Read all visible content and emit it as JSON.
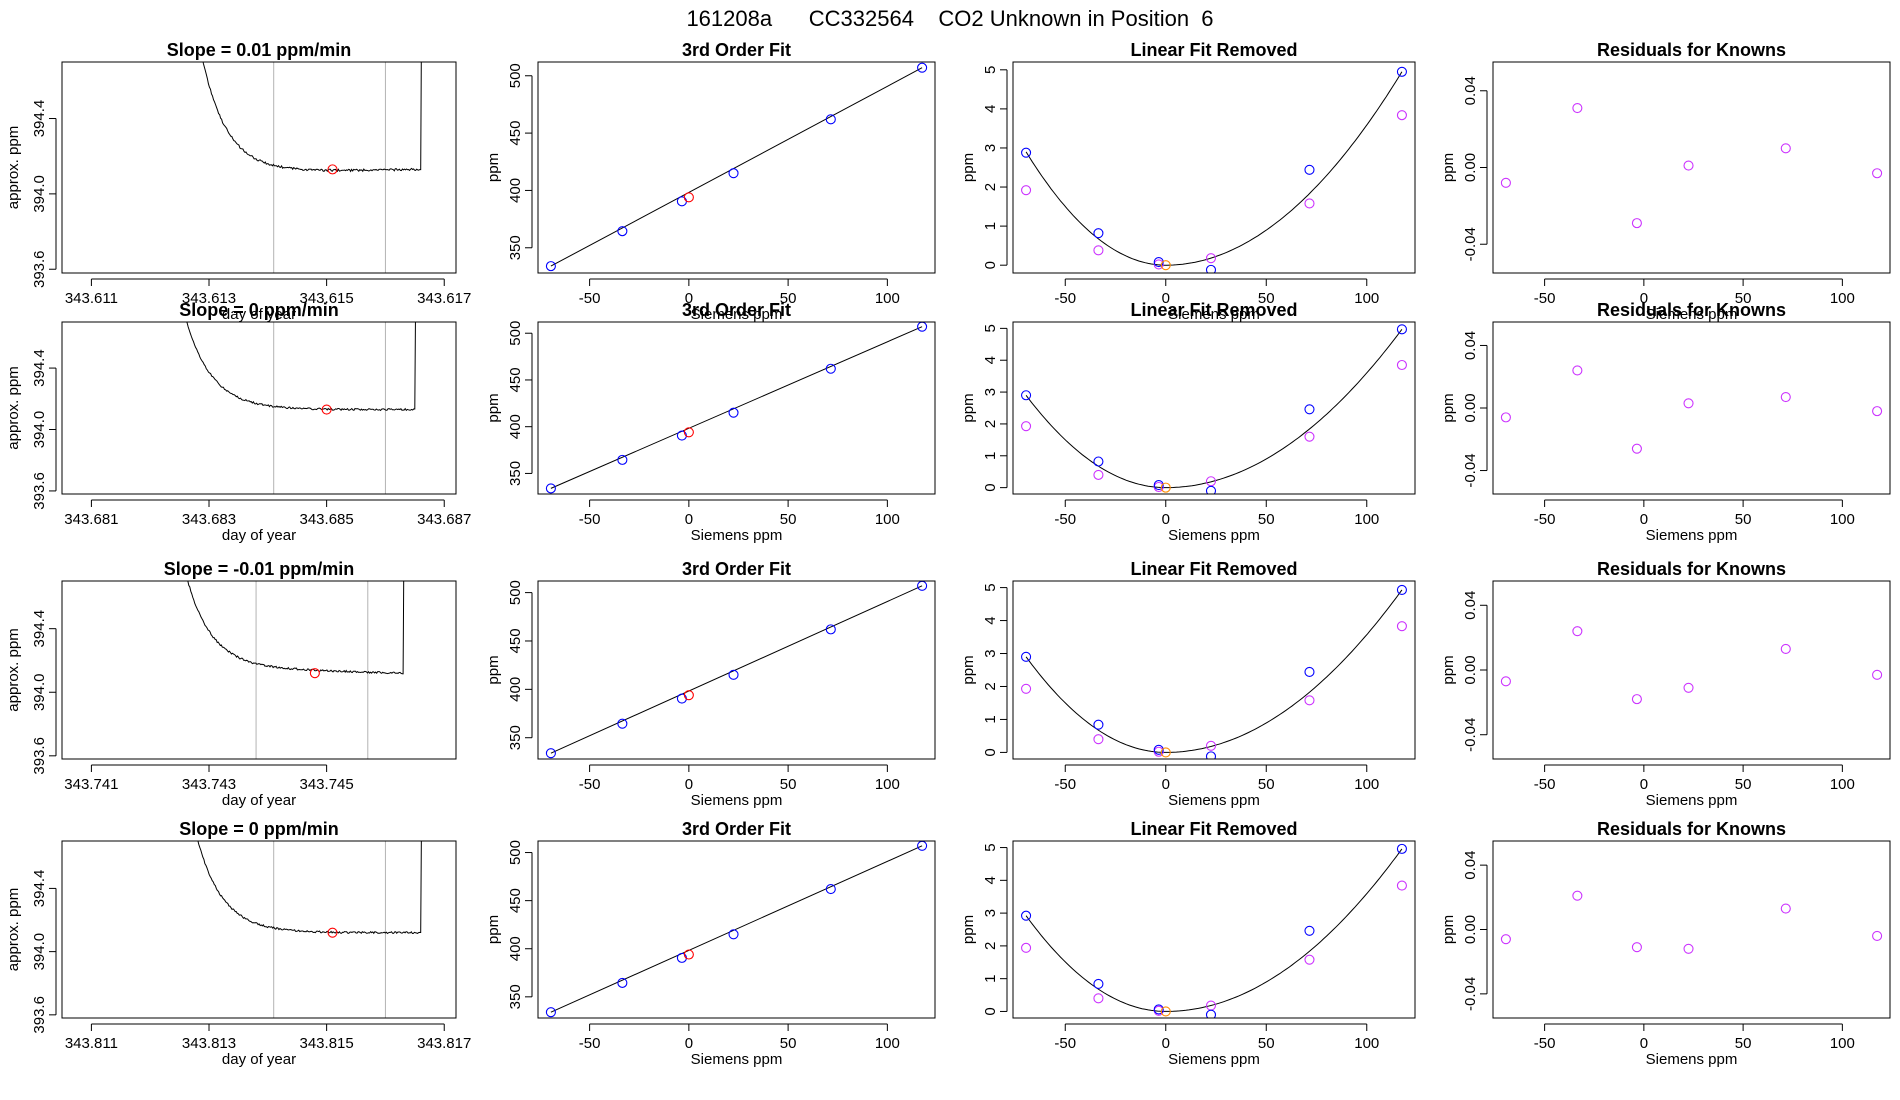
{
  "page": {
    "title": "161208a      CC332564    CO2 Unknown in Position  6"
  },
  "colors": {
    "known_points": "#0000ff",
    "unknown_point": "#ff0000",
    "residual_points": "#cc33ff",
    "unknown_linear_removed": "#ff8c00",
    "trace": "#000000",
    "window_lines": "#b3b3b3",
    "frame": "#000000"
  },
  "chart_data": [
    {
      "type": "line",
      "row": 0,
      "panel": "trace",
      "title": "Slope =  0.01  ppm/min",
      "xlabel": "day of year",
      "ylabel": "approx. ppm",
      "xlim": [
        343.6105,
        343.6172
      ],
      "ylim": [
        393.58,
        394.7
      ],
      "xticks": [
        343.611,
        343.613,
        343.615,
        343.617
      ],
      "xtick_labels": [
        "343.611",
        "343.613",
        "343.615",
        "343.617"
      ],
      "yticks": [
        393.6,
        394.0,
        394.4
      ],
      "ytick_labels": [
        "393.6",
        "394.0",
        "394.4"
      ],
      "window": [
        343.6141,
        343.616
      ],
      "trace_start": 343.6128,
      "trace_end": 343.6166,
      "plateau": 394.12,
      "slope_shift": 0.02,
      "highlight": {
        "x": 343.6151,
        "y": 394.13
      }
    },
    {
      "type": "scatter",
      "row": 0,
      "panel": "fit",
      "title": "3rd Order Fit",
      "xlabel": "Siemens ppm",
      "ylabel": "ppm",
      "xlim": [
        -76,
        124
      ],
      "ylim": [
        328,
        512
      ],
      "xticks": [
        -50,
        0,
        50,
        100
      ],
      "xtick_labels": [
        "-50",
        "0",
        "50",
        "100"
      ],
      "yticks": [
        350,
        400,
        450,
        500
      ],
      "ytick_labels": [
        "350",
        "400",
        "450",
        "500"
      ],
      "known_x": [
        -69.5,
        -33.5,
        -3.5,
        22.5,
        71.5,
        117.5
      ],
      "known_y": [
        334.0,
        364.5,
        390.5,
        415.0,
        462.0,
        507.0
      ],
      "unknown": {
        "x": 0.0,
        "y": 394.0
      },
      "fit_line": [
        [
          -69.5,
          334.0
        ],
        [
          117.5,
          507.0
        ]
      ]
    },
    {
      "type": "scatter",
      "row": 0,
      "panel": "linear_removed",
      "title": "Linear Fit Removed",
      "xlabel": "Siemens ppm",
      "ylabel": "ppm",
      "xlim": [
        -76,
        124
      ],
      "ylim": [
        -0.2,
        5.2
      ],
      "xticks": [
        -50,
        0,
        50,
        100
      ],
      "xtick_labels": [
        "-50",
        "0",
        "50",
        "100"
      ],
      "yticks": [
        0,
        1,
        2,
        3,
        4,
        5
      ],
      "ytick_labels": [
        "0",
        "1",
        "2",
        "3",
        "4",
        "5"
      ],
      "known_x": [
        -69.5,
        -33.5,
        -3.5,
        22.5,
        71.5,
        117.5
      ],
      "known_y": [
        2.88,
        0.82,
        0.08,
        -0.12,
        2.44,
        4.95
      ],
      "alt_y": [
        1.92,
        0.38,
        0.02,
        0.18,
        1.58,
        3.84
      ],
      "unknown": {
        "x": 0.0,
        "y": 0.0
      },
      "curve_vertex": 0,
      "curve_left": 2.9,
      "curve_right": 4.95
    },
    {
      "type": "scatter",
      "row": 0,
      "panel": "residuals",
      "title": "Residuals for Knowns",
      "xlabel": "Siemens ppm",
      "ylabel": "ppm",
      "xlim": [
        -76,
        124
      ],
      "ylim": [
        -0.055,
        0.055
      ],
      "xticks": [
        -50,
        0,
        50,
        100
      ],
      "xtick_labels": [
        "-50",
        "0",
        "50",
        "100"
      ],
      "yticks": [
        -0.04,
        0.0,
        0.04
      ],
      "ytick_labels": [
        "-0.04",
        "0.00",
        "0.04"
      ],
      "x": [
        -69.5,
        -33.5,
        -3.5,
        22.5,
        71.5,
        117.5
      ],
      "y": [
        -0.008,
        0.031,
        -0.029,
        0.001,
        0.01,
        -0.003
      ]
    },
    {
      "type": "line",
      "row": 1,
      "panel": "trace",
      "title": "Slope =  0  ppm/min",
      "xlabel": "day of year",
      "ylabel": "approx. ppm",
      "xlim": [
        343.6805,
        343.6872
      ],
      "ylim": [
        393.58,
        394.7
      ],
      "xticks": [
        343.681,
        343.683,
        343.685,
        343.687
      ],
      "xtick_labels": [
        "343.681",
        "343.683",
        "343.685",
        "343.687"
      ],
      "yticks": [
        393.6,
        394.0,
        394.4
      ],
      "ytick_labels": [
        "393.6",
        "394.0",
        "394.4"
      ],
      "window": [
        343.6841,
        343.686
      ],
      "trace_start": 343.6825,
      "trace_end": 343.6865,
      "plateau": 394.13,
      "slope_shift": 0.0,
      "highlight": {
        "x": 343.685,
        "y": 394.13
      }
    },
    {
      "type": "scatter",
      "row": 1,
      "panel": "fit",
      "title": "3rd Order Fit",
      "xlabel": "Siemens ppm",
      "ylabel": "ppm",
      "xlim": [
        -76,
        124
      ],
      "ylim": [
        328,
        512
      ],
      "xticks": [
        -50,
        0,
        50,
        100
      ],
      "xtick_labels": [
        "-50",
        "0",
        "50",
        "100"
      ],
      "yticks": [
        350,
        400,
        450,
        500
      ],
      "ytick_labels": [
        "350",
        "400",
        "450",
        "500"
      ],
      "known_x": [
        -69.5,
        -33.5,
        -3.5,
        22.5,
        71.5,
        117.5
      ],
      "known_y": [
        334.0,
        364.5,
        390.5,
        415.0,
        462.0,
        507.0
      ],
      "unknown": {
        "x": 0.0,
        "y": 394.0
      },
      "fit_line": [
        [
          -69.5,
          334.0
        ],
        [
          117.5,
          507.0
        ]
      ]
    },
    {
      "type": "scatter",
      "row": 1,
      "panel": "linear_removed",
      "title": "Linear Fit Removed",
      "xlabel": "Siemens ppm",
      "ylabel": "ppm",
      "xlim": [
        -76,
        124
      ],
      "ylim": [
        -0.2,
        5.2
      ],
      "xticks": [
        -50,
        0,
        50,
        100
      ],
      "xtick_labels": [
        "-50",
        "0",
        "50",
        "100"
      ],
      "yticks": [
        0,
        1,
        2,
        3,
        4,
        5
      ],
      "ytick_labels": [
        "0",
        "1",
        "2",
        "3",
        "4",
        "5"
      ],
      "known_x": [
        -69.5,
        -33.5,
        -3.5,
        22.5,
        71.5,
        117.5
      ],
      "known_y": [
        2.9,
        0.82,
        0.08,
        -0.1,
        2.46,
        4.97
      ],
      "alt_y": [
        1.93,
        0.4,
        0.02,
        0.2,
        1.6,
        3.85
      ],
      "unknown": {
        "x": 0.0,
        "y": 0.0
      },
      "curve_vertex": 0,
      "curve_left": 2.9,
      "curve_right": 4.97
    },
    {
      "type": "scatter",
      "row": 1,
      "panel": "residuals",
      "title": "Residuals for Knowns",
      "xlabel": "Siemens ppm",
      "ylabel": "ppm",
      "xlim": [
        -76,
        124
      ],
      "ylim": [
        -0.055,
        0.055
      ],
      "xticks": [
        -50,
        0,
        50,
        100
      ],
      "xtick_labels": [
        "-50",
        "0",
        "50",
        "100"
      ],
      "yticks": [
        -0.04,
        0.0,
        0.04
      ],
      "ytick_labels": [
        "-0.04",
        "0.00",
        "0.04"
      ],
      "x": [
        -69.5,
        -33.5,
        -3.5,
        22.5,
        71.5,
        117.5
      ],
      "y": [
        -0.006,
        0.024,
        -0.026,
        0.003,
        0.007,
        -0.002
      ]
    },
    {
      "type": "line",
      "row": 2,
      "panel": "trace",
      "title": "Slope =  -0.01  ppm/min",
      "xlabel": "day of year",
      "ylabel": "approx. ppm",
      "xlim": [
        343.7405,
        343.7472
      ],
      "ylim": [
        393.58,
        394.7
      ],
      "xticks": [
        343.741,
        343.743,
        343.745
      ],
      "xtick_labels": [
        "343.741",
        "343.743",
        "343.745"
      ],
      "yticks": [
        393.6,
        394.0,
        394.4
      ],
      "ytick_labels": [
        "393.6",
        "394.0",
        "394.4"
      ],
      "window": [
        343.7438,
        343.7457
      ],
      "trace_start": 343.7425,
      "trace_end": 343.7463,
      "plateau": 394.14,
      "slope_shift": -0.04,
      "highlight": {
        "x": 343.7448,
        "y": 394.12
      }
    },
    {
      "type": "scatter",
      "row": 2,
      "panel": "fit",
      "title": "3rd Order Fit",
      "xlabel": "Siemens ppm",
      "ylabel": "ppm",
      "xlim": [
        -76,
        124
      ],
      "ylim": [
        328,
        512
      ],
      "xticks": [
        -50,
        0,
        50,
        100
      ],
      "xtick_labels": [
        "-50",
        "0",
        "50",
        "100"
      ],
      "yticks": [
        350,
        400,
        450,
        500
      ],
      "ytick_labels": [
        "350",
        "400",
        "450",
        "500"
      ],
      "known_x": [
        -69.5,
        -33.5,
        -3.5,
        22.5,
        71.5,
        117.5
      ],
      "known_y": [
        334.0,
        364.5,
        390.5,
        415.0,
        462.0,
        507.0
      ],
      "unknown": {
        "x": 0.0,
        "y": 394.0
      },
      "fit_line": [
        [
          -69.5,
          334.0
        ],
        [
          117.5,
          507.0
        ]
      ]
    },
    {
      "type": "scatter",
      "row": 2,
      "panel": "linear_removed",
      "title": "Linear Fit Removed",
      "xlabel": "Siemens ppm",
      "ylabel": "ppm",
      "xlim": [
        -76,
        124
      ],
      "ylim": [
        -0.2,
        5.2
      ],
      "xticks": [
        -50,
        0,
        50,
        100
      ],
      "xtick_labels": [
        "-50",
        "0",
        "50",
        "100"
      ],
      "yticks": [
        0,
        1,
        2,
        3,
        4,
        5
      ],
      "ytick_labels": [
        "0",
        "1",
        "2",
        "3",
        "4",
        "5"
      ],
      "known_x": [
        -69.5,
        -33.5,
        -3.5,
        22.5,
        71.5,
        117.5
      ],
      "known_y": [
        2.9,
        0.84,
        0.08,
        -0.12,
        2.44,
        4.93
      ],
      "alt_y": [
        1.93,
        0.4,
        0.02,
        0.2,
        1.58,
        3.83
      ],
      "unknown": {
        "x": 0.0,
        "y": 0.0
      },
      "curve_vertex": 0,
      "curve_left": 2.9,
      "curve_right": 4.93
    },
    {
      "type": "scatter",
      "row": 2,
      "panel": "residuals",
      "title": "Residuals for Knowns",
      "xlabel": "Siemens ppm",
      "ylabel": "ppm",
      "xlim": [
        -76,
        124
      ],
      "ylim": [
        -0.055,
        0.055
      ],
      "xticks": [
        -50,
        0,
        50,
        100
      ],
      "xtick_labels": [
        "-50",
        "0",
        "50",
        "100"
      ],
      "yticks": [
        -0.04,
        0.0,
        0.04
      ],
      "ytick_labels": [
        "-0.04",
        "0.00",
        "0.04"
      ],
      "x": [
        -69.5,
        -33.5,
        -3.5,
        22.5,
        71.5,
        117.5
      ],
      "y": [
        -0.007,
        0.024,
        -0.018,
        -0.011,
        0.013,
        -0.003
      ]
    },
    {
      "type": "line",
      "row": 3,
      "panel": "trace",
      "title": "Slope =  0  ppm/min",
      "xlabel": "day of year",
      "ylabel": "approx. ppm",
      "xlim": [
        343.8105,
        343.8172
      ],
      "ylim": [
        393.58,
        394.7
      ],
      "xticks": [
        343.811,
        343.813,
        343.815,
        343.817
      ],
      "xtick_labels": [
        "343.811",
        "343.813",
        "343.815",
        "343.817"
      ],
      "yticks": [
        393.6,
        394.0,
        394.4
      ],
      "ytick_labels": [
        "393.6",
        "394.0",
        "394.4"
      ],
      "window": [
        343.8141,
        343.816
      ],
      "trace_start": 343.8127,
      "trace_end": 343.8166,
      "plateau": 394.12,
      "slope_shift": 0.0,
      "highlight": {
        "x": 343.8151,
        "y": 394.12
      }
    },
    {
      "type": "scatter",
      "row": 3,
      "panel": "fit",
      "title": "3rd Order Fit",
      "xlabel": "Siemens ppm",
      "ylabel": "ppm",
      "xlim": [
        -76,
        124
      ],
      "ylim": [
        328,
        512
      ],
      "xticks": [
        -50,
        0,
        50,
        100
      ],
      "xtick_labels": [
        "-50",
        "0",
        "50",
        "100"
      ],
      "yticks": [
        350,
        400,
        450,
        500
      ],
      "ytick_labels": [
        "350",
        "400",
        "450",
        "500"
      ],
      "known_x": [
        -69.5,
        -33.5,
        -3.5,
        22.5,
        71.5,
        117.5
      ],
      "known_y": [
        334.0,
        364.5,
        390.5,
        415.0,
        462.0,
        507.0
      ],
      "unknown": {
        "x": 0.0,
        "y": 394.0
      },
      "fit_line": [
        [
          -69.5,
          334.0
        ],
        [
          117.5,
          507.0
        ]
      ]
    },
    {
      "type": "scatter",
      "row": 3,
      "panel": "linear_removed",
      "title": "Linear Fit Removed",
      "xlabel": "Siemens ppm",
      "ylabel": "ppm",
      "xlim": [
        -76,
        124
      ],
      "ylim": [
        -0.2,
        5.2
      ],
      "xticks": [
        -50,
        0,
        50,
        100
      ],
      "xtick_labels": [
        "-50",
        "0",
        "50",
        "100"
      ],
      "yticks": [
        0,
        1,
        2,
        3,
        4,
        5
      ],
      "ytick_labels": [
        "0",
        "1",
        "2",
        "3",
        "4",
        "5"
      ],
      "known_x": [
        -69.5,
        -33.5,
        -3.5,
        22.5,
        71.5,
        117.5
      ],
      "known_y": [
        2.92,
        0.84,
        0.06,
        -0.1,
        2.46,
        4.96
      ],
      "alt_y": [
        1.94,
        0.4,
        0.02,
        0.18,
        1.58,
        3.84
      ],
      "unknown": {
        "x": 0.0,
        "y": 0.0
      },
      "curve_vertex": 0,
      "curve_left": 2.92,
      "curve_right": 4.96
    },
    {
      "type": "scatter",
      "row": 3,
      "panel": "residuals",
      "title": "Residuals for Knowns",
      "xlabel": "Siemens ppm",
      "ylabel": "ppm",
      "xlim": [
        -76,
        124
      ],
      "ylim": [
        -0.055,
        0.055
      ],
      "xticks": [
        -50,
        0,
        50,
        100
      ],
      "xtick_labels": [
        "-50",
        "0",
        "50",
        "100"
      ],
      "yticks": [
        -0.04,
        0.0,
        0.04
      ],
      "ytick_labels": [
        "-0.04",
        "0.00",
        "0.04"
      ],
      "x": [
        -69.5,
        -33.5,
        -3.5,
        22.5,
        71.5,
        117.5
      ],
      "y": [
        -0.006,
        0.021,
        -0.011,
        -0.012,
        0.013,
        -0.004
      ]
    }
  ]
}
